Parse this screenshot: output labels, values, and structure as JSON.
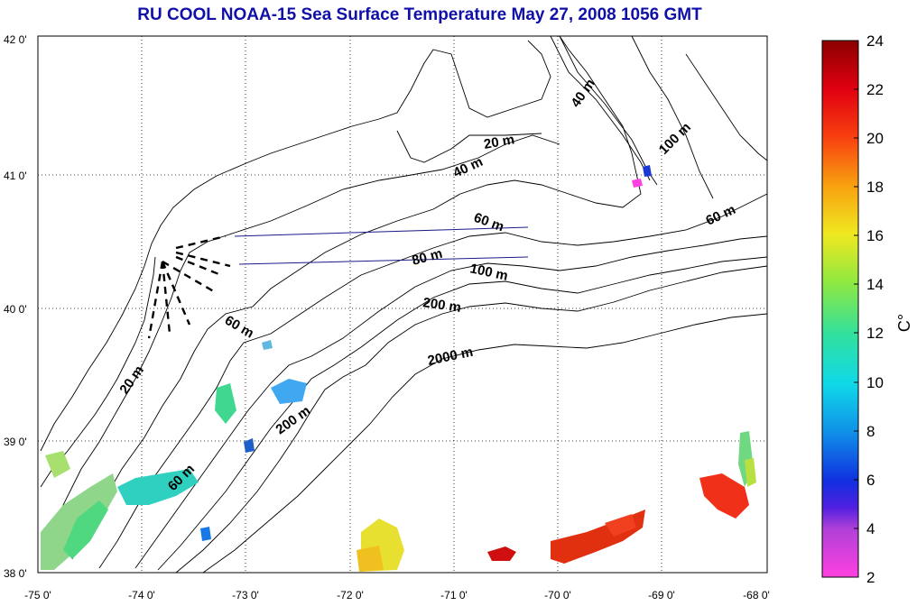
{
  "title": "RU COOL  NOAA-15 Sea Surface Temperature May 27, 2008 1056 GMT",
  "map": {
    "lon_ticks": [
      "-75 0'",
      "-74 0'",
      "-73 0'",
      "-72 0'",
      "-71 0'",
      "-70 0'",
      "-69 0'",
      "-68 0'"
    ],
    "lat_ticks": [
      "42 0'",
      "41 0'",
      "40 0'",
      "39 0'",
      "38 0'"
    ],
    "depth_labels": [
      "40 m",
      "20 m",
      "40 m",
      "100 m",
      "60 m",
      "60 m",
      "80 m",
      "100 m",
      "200 m",
      "60 m",
      "2000 m",
      "20 m",
      "200 m",
      "60 m"
    ],
    "grid": "dotted"
  },
  "colorbar": {
    "ticks": [
      "24",
      "22",
      "20",
      "18",
      "16",
      "14",
      "12",
      "10",
      "8",
      "6",
      "4",
      "2"
    ],
    "unit": "C°",
    "range": [
      2,
      24
    ]
  }
}
